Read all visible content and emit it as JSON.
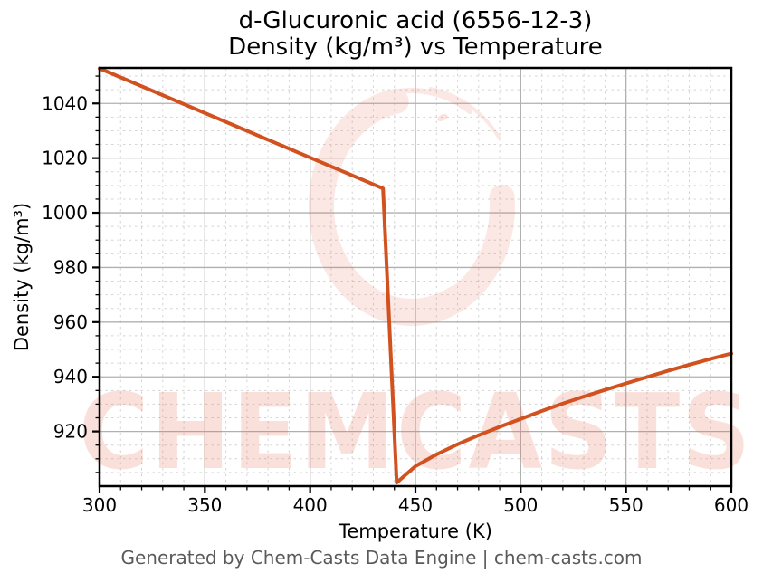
{
  "title": {
    "line1": "d-Glucuronic acid (6556-12-3)",
    "line2": "Density (kg/m³) vs Temperature"
  },
  "footer": {
    "text": "Generated by Chem-Casts Data Engine | chem-casts.com"
  },
  "watermark": {
    "text": "CHEMCASTS",
    "logo": "chemcasts-ring-logo"
  },
  "colors": {
    "line": "#d1521f",
    "grid_major": "#b0b0b0",
    "grid_minor": "#d4d4d4",
    "spine": "#000000",
    "tick_label": "#000000",
    "footer_text": "#5a5a5a",
    "watermark": "#e96a4e",
    "background": "#ffffff"
  },
  "chart_data": {
    "type": "line",
    "title": "d-Glucuronic acid (6556-12-3) — Density (kg/m³) vs Temperature",
    "xlabel": "Temperature (K)",
    "ylabel": "Density (kg/m³)",
    "xlim": [
      300,
      600
    ],
    "ylim": [
      900,
      1053
    ],
    "x_major_ticks": [
      300,
      350,
      400,
      450,
      500,
      550,
      600
    ],
    "y_major_ticks": [
      920,
      940,
      960,
      980,
      1000,
      1020,
      1040
    ],
    "x_minor_step": 10,
    "y_minor_step": 5,
    "grid": "major solid, minor dashed",
    "legend": "none",
    "series": [
      {
        "name": "Density",
        "color": "#d1521f",
        "line_width": 4,
        "points": [
          [
            300,
            1052.8
          ],
          [
            434.6,
            1008.9
          ],
          [
            441.1,
            901.3
          ],
          [
            450,
            907.3
          ],
          [
            460,
            911.6
          ],
          [
            470,
            915.3
          ],
          [
            480,
            918.6
          ],
          [
            490,
            921.7
          ],
          [
            500,
            924.6
          ],
          [
            510,
            927.5
          ],
          [
            520,
            930.2
          ],
          [
            530,
            932.8
          ],
          [
            540,
            935.2
          ],
          [
            550,
            937.6
          ],
          [
            560,
            939.9
          ],
          [
            570,
            942.2
          ],
          [
            580,
            944.4
          ],
          [
            590,
            946.5
          ],
          [
            600,
            948.5
          ]
        ]
      }
    ]
  }
}
